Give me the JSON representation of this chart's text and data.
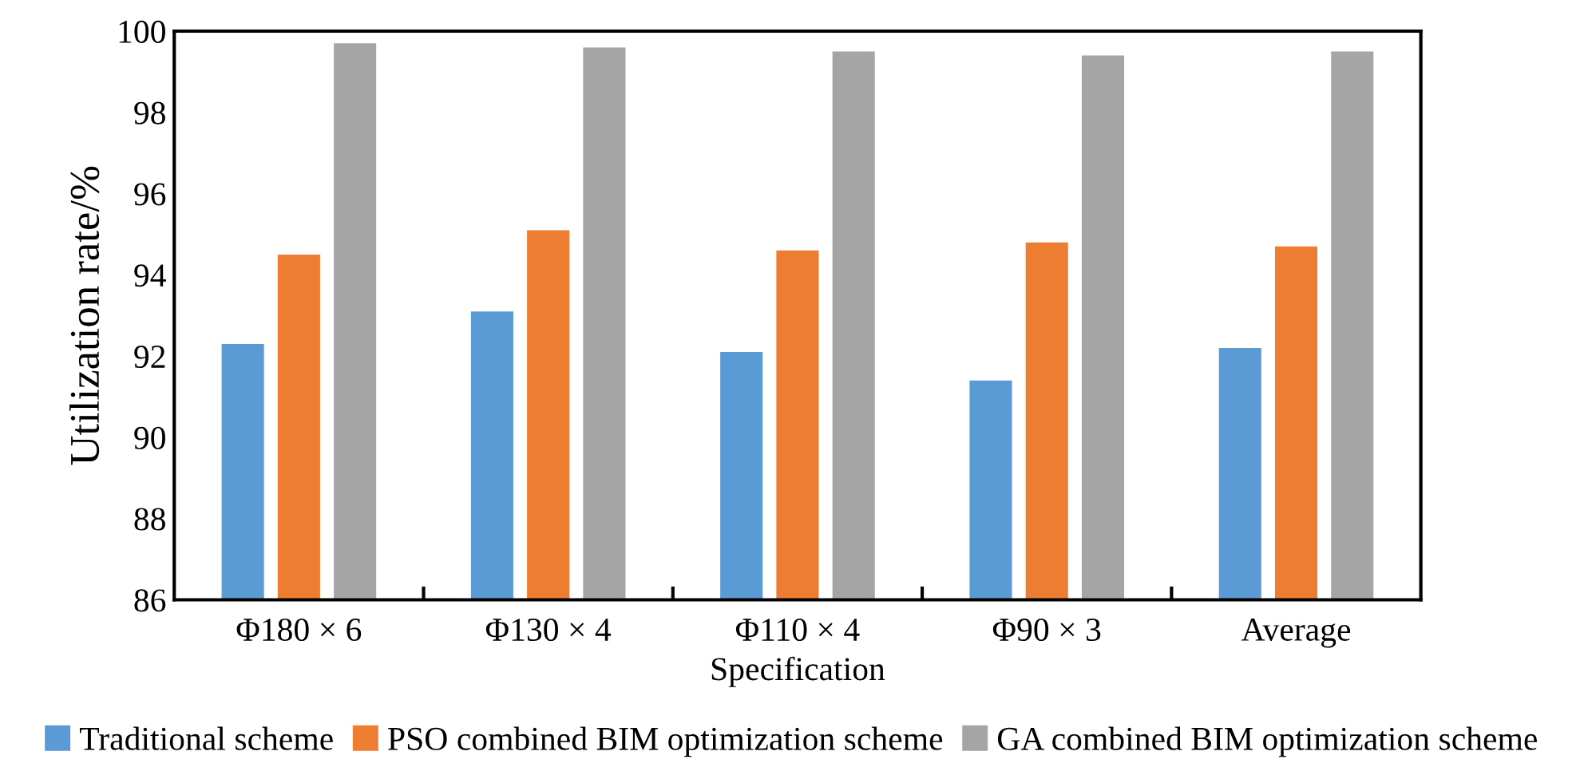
{
  "chart_data": {
    "type": "bar",
    "xlabel": "Specification",
    "ylabel": "Utilization rate/%",
    "categories": [
      "Φ180 × 6",
      "Φ130 × 4",
      "Φ110 × 4",
      "Φ90 × 3",
      "Average"
    ],
    "series": [
      {
        "name": "Traditional scheme",
        "color": "#5b9bd5",
        "values": [
          92.3,
          93.1,
          92.1,
          91.4,
          92.2
        ]
      },
      {
        "name": "PSO combined BIM optimization scheme",
        "color": "#ed7d31",
        "values": [
          94.5,
          95.1,
          94.6,
          94.8,
          94.7
        ]
      },
      {
        "name": "GA combined BIM optimization scheme",
        "color": "#a5a5a5",
        "values": [
          99.7,
          99.6,
          99.5,
          99.4,
          99.5
        ]
      }
    ],
    "ylim": [
      86,
      100
    ],
    "yticks": [
      86,
      88,
      90,
      92,
      94,
      96,
      98,
      100
    ],
    "grid": false,
    "legend": "bottom"
  }
}
